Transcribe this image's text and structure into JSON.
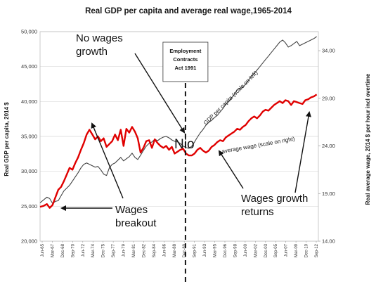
{
  "chart_data": {
    "type": "line",
    "title": "Real GDP per capita and average real wage,1965-2014",
    "ylabel": "Real GDP per capita, 2014 $",
    "y2label": "Real average wage, 2014 $ per hour incl overtime",
    "ylim": [
      20000,
      50000
    ],
    "y2lim": [
      14,
      36
    ],
    "yticks": [
      "20,000",
      "25,000",
      "30,000",
      "35,000",
      "40,000",
      "45,000",
      "50,000"
    ],
    "y2ticks": [
      "14.00",
      "19.00",
      "24.00",
      "29.00",
      "34.00"
    ],
    "xticks": [
      "Jun-65",
      "Mar-67",
      "Dec-68",
      "Sep-70",
      "Jun-72",
      "Mar-74",
      "Dec-75",
      "Sep-77",
      "Jun-79",
      "Mar-81",
      "Dec-82",
      "Sep-84",
      "Jun-86",
      "Mar-88",
      "Dec-89",
      "Sep-91",
      "Jun-93",
      "Mar-95",
      "Dec-96",
      "Sep-98",
      "Jun-00",
      "Mar-02",
      "Dec-03",
      "Sep-05",
      "Jun-07",
      "Mar-09",
      "Dec-10",
      "Sep-12"
    ],
    "legend": "none",
    "grid": "horizontal",
    "series": [
      {
        "name": "GDP per capita (scale on left)",
        "axis": "left",
        "color": "#444444",
        "x": [
          1965.4,
          1966,
          1966.6,
          1967.1,
          1967.6,
          1968.1,
          1968.6,
          1969.1,
          1969.6,
          1970.1,
          1970.6,
          1971.1,
          1971.6,
          1972.1,
          1972.6,
          1973.1,
          1973.6,
          1974.1,
          1974.6,
          1975.1,
          1975.6,
          1976.1,
          1976.6,
          1977.1,
          1977.6,
          1978.1,
          1978.6,
          1979.1,
          1979.6,
          1980.1,
          1980.6,
          1981.1,
          1981.6,
          1982.1,
          1982.6,
          1983.1,
          1983.6,
          1984.1,
          1984.6,
          1985.1,
          1985.6,
          1986.1,
          1986.6,
          1987.1,
          1987.6,
          1988.1,
          1988.6,
          1989.1,
          1989.6,
          1990.1,
          1990.6,
          1991.1,
          1991.6,
          1992.1,
          1992.6,
          1993.1,
          1993.6,
          1994.1,
          1994.6,
          1995.1,
          1995.6,
          1996.1,
          1996.6,
          1997.1,
          1997.6,
          1998.1,
          1998.6,
          1999.1,
          1999.6,
          2000.1,
          2000.6,
          2001.1,
          2001.6,
          2002.1,
          2002.6,
          2003.1,
          2003.6,
          2004.1,
          2004.6,
          2005.1,
          2005.6,
          2006.1,
          2006.6,
          2007.1,
          2007.6,
          2008.1,
          2008.6,
          2009.1,
          2009.6,
          2010.1,
          2010.6,
          2011.1,
          2011.6,
          2012.1,
          2012.6,
          2013.1,
          2013.6,
          2014.1
        ],
        "values": [
          25500,
          25900,
          26300,
          26100,
          25400,
          25700,
          25800,
          26500,
          27200,
          27600,
          28000,
          28600,
          29200,
          29800,
          30500,
          31000,
          31200,
          31000,
          30800,
          30600,
          30700,
          30200,
          29600,
          29400,
          30500,
          31000,
          31200,
          31600,
          32000,
          31500,
          31800,
          32100,
          32600,
          32000,
          31700,
          32300,
          33000,
          33600,
          34000,
          34200,
          34600,
          34400,
          34700,
          34900,
          35000,
          34800,
          34500,
          34300,
          34200,
          34000,
          33600,
          33400,
          33300,
          33600,
          34200,
          34900,
          35500,
          36000,
          36600,
          37000,
          37300,
          37700,
          38000,
          38500,
          39000,
          39600,
          40000,
          40500,
          41000,
          41700,
          41900,
          42000,
          42500,
          43000,
          43700,
          44000,
          44500,
          45000,
          45500,
          46000,
          46500,
          47000,
          47500,
          48000,
          48500,
          48800,
          48400,
          47800,
          48000,
          48300,
          48600,
          48000,
          48200,
          48400,
          48600,
          48800,
          49000,
          49300
        ]
      },
      {
        "name": "average wage (scale on right)",
        "axis": "right",
        "color": "#e00000",
        "x": [
          1965.4,
          1966,
          1966.6,
          1967.1,
          1967.6,
          1968.1,
          1968.6,
          1969.1,
          1969.6,
          1970.1,
          1970.6,
          1971.1,
          1971.6,
          1972.1,
          1972.6,
          1973.1,
          1973.6,
          1974.1,
          1974.6,
          1975.1,
          1975.6,
          1976.1,
          1976.6,
          1977.1,
          1977.6,
          1978.1,
          1978.6,
          1979.1,
          1979.6,
          1980.1,
          1980.6,
          1981.1,
          1981.6,
          1982.1,
          1982.6,
          1983.1,
          1983.6,
          1984.1,
          1984.6,
          1985.1,
          1985.6,
          1986.1,
          1986.6,
          1987.1,
          1987.6,
          1988.1,
          1988.6,
          1989.1,
          1989.6,
          1990.1,
          1990.6,
          1991.1,
          1991.6,
          1992.1,
          1992.6,
          1993.1,
          1993.6,
          1994.1,
          1994.6,
          1995.1,
          1995.6,
          1996.1,
          1996.6,
          1997.1,
          1997.6,
          1998.1,
          1998.6,
          1999.1,
          1999.6,
          2000.1,
          2000.6,
          2001.1,
          2001.6,
          2002.1,
          2002.6,
          2003.1,
          2003.6,
          2004.1,
          2004.6,
          2005.1,
          2005.6,
          2006.1,
          2006.6,
          2007.1,
          2007.6,
          2008.1,
          2008.6,
          2009.1,
          2009.6,
          2010.1,
          2010.6,
          2011.1,
          2011.6,
          2012.1,
          2012.6,
          2013.1,
          2013.6,
          2014.1
        ],
        "values": [
          17.6,
          17.7,
          17.9,
          17.5,
          17.8,
          18.6,
          19.4,
          19.7,
          20.3,
          21.0,
          21.7,
          21.5,
          22.2,
          22.8,
          23.6,
          24.3,
          25.2,
          25.7,
          25.2,
          24.7,
          25.0,
          24.5,
          24.8,
          23.9,
          24.2,
          24.5,
          25.2,
          24.6,
          25.7,
          24.0,
          25.8,
          25.4,
          26.0,
          25.5,
          24.8,
          23.3,
          23.8,
          24.5,
          24.6,
          23.8,
          24.7,
          24.3,
          24.0,
          23.8,
          24.0,
          23.6,
          23.9,
          23.2,
          23.4,
          23.6,
          23.7,
          23.2,
          23.0,
          23.0,
          23.2,
          23.6,
          23.8,
          23.5,
          23.3,
          23.5,
          23.9,
          24.1,
          24.4,
          24.6,
          24.5,
          24.9,
          25.1,
          25.3,
          25.5,
          25.8,
          25.7,
          26.0,
          26.2,
          26.6,
          26.9,
          27.1,
          26.9,
          27.2,
          27.6,
          27.8,
          27.7,
          28.0,
          28.3,
          28.5,
          28.7,
          28.5,
          28.8,
          28.7,
          28.3,
          28.7,
          28.6,
          28.5,
          28.4,
          28.8,
          28.9,
          29.1,
          29.2,
          29.4
        ]
      }
    ],
    "annotations": {
      "box_label": "Employment\nContracts\nAct 1991",
      "no_wages_growth": "No wages\ngrowth",
      "nio": "Nio",
      "wages_breakout": "Wages\nbreakout",
      "wages_growth_returns": "Wages growth\nreturns",
      "gdp_series_label": "GDP per capita (scale on left)",
      "wage_series_label": "average wage (scale on right)"
    }
  }
}
